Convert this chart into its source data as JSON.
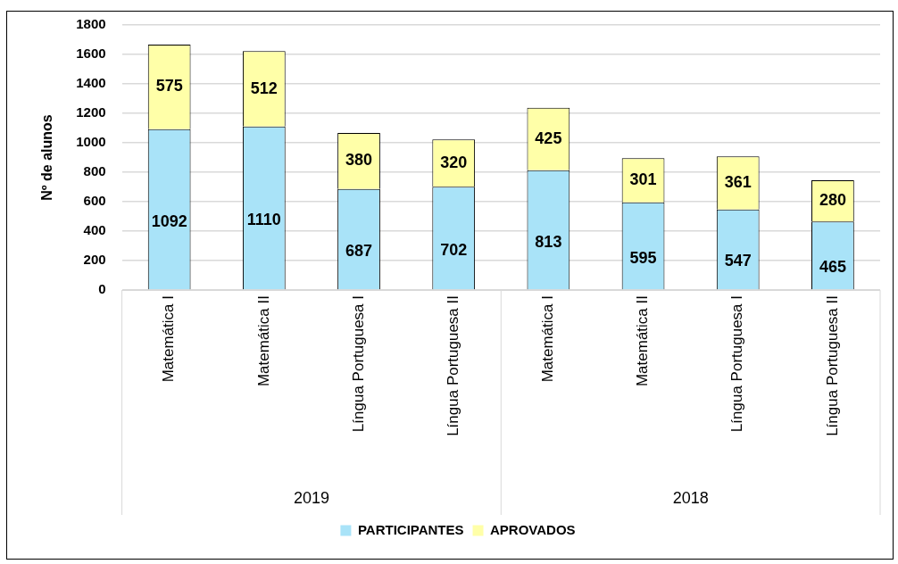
{
  "chart_data": {
    "type": "bar",
    "stacked": true,
    "ylabel": "Nº de alunos",
    "categories": [
      "Matemática I",
      "Matemática II",
      "Língua Portuguesa I",
      "Língua Portuguesa II",
      "Matemática I",
      "Matemática II",
      "Língua Portuguesa I",
      "Língua Portuguesa II"
    ],
    "series": [
      {
        "name": "PARTICIPANTES",
        "color": "#a9e3f8",
        "values": [
          1092,
          1110,
          687,
          702,
          813,
          595,
          547,
          465
        ]
      },
      {
        "name": "APROVADOS",
        "color": "#ffffa8",
        "values": [
          575,
          512,
          380,
          320,
          425,
          301,
          361,
          280
        ]
      }
    ],
    "annotations": [
      "2019",
      "2018"
    ],
    "ylim": [
      0,
      1800
    ],
    "yticks": [
      0,
      200,
      400,
      600,
      800,
      1000,
      1200,
      1400,
      1600,
      1800
    ],
    "grid": "y",
    "legend": "bottom",
    "data_labels": true
  }
}
